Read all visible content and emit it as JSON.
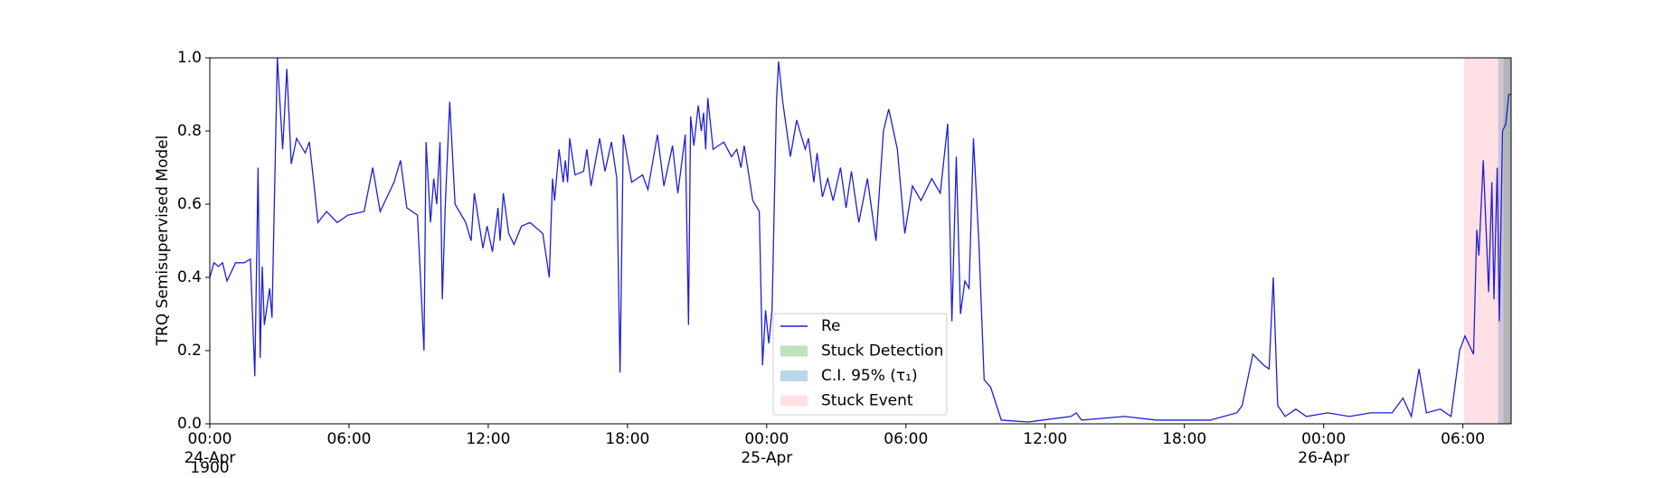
{
  "chart_data": {
    "type": "line",
    "y_label": "TRQ Semisupervised Model",
    "x_offset_label": "1900",
    "xlim": [
      0,
      56.08
    ],
    "ylim": [
      0,
      1
    ],
    "xticks": [
      {
        "value": 0,
        "label": "00:00\n24-Apr"
      },
      {
        "value": 6,
        "label": "06:00"
      },
      {
        "value": 12,
        "label": "12:00"
      },
      {
        "value": 18,
        "label": "18:00"
      },
      {
        "value": 24,
        "label": "00:00\n25-Apr"
      },
      {
        "value": 30,
        "label": "06:00"
      },
      {
        "value": 36,
        "label": "12:00"
      },
      {
        "value": 42,
        "label": "18:00"
      },
      {
        "value": 48,
        "label": "00:00\n26-Apr"
      },
      {
        "value": 54,
        "label": "06:00"
      }
    ],
    "yticks": [
      {
        "value": 0,
        "label": "0.0"
      },
      {
        "value": 0.2,
        "label": "0.2"
      },
      {
        "value": 0.4,
        "label": "0.4"
      },
      {
        "value": 0.6,
        "label": "0.6"
      },
      {
        "value": 0.8,
        "label": "0.8"
      },
      {
        "value": 1,
        "label": "1.0"
      }
    ],
    "series": [
      {
        "name": "Re",
        "color": "#1f1fd6",
        "x": [
          0,
          0.18,
          0.37,
          0.55,
          0.74,
          1.11,
          1.48,
          1.75,
          1.94,
          2.08,
          2.17,
          2.26,
          2.35,
          2.58,
          2.68,
          2.91,
          3.14,
          3.32,
          3.51,
          3.74,
          4.11,
          4.29,
          4.48,
          4.66,
          5.03,
          5.49,
          5.95,
          6.65,
          7.02,
          7.34,
          7.94,
          8.22,
          8.49,
          8.95,
          9.23,
          9.32,
          9.51,
          9.65,
          9.78,
          9.92,
          10.02,
          10.15,
          10.34,
          10.57,
          11.03,
          11.26,
          11.4,
          11.77,
          11.95,
          12.18,
          12.42,
          12.51,
          12.65,
          12.88,
          13.11,
          13.43,
          13.8,
          14.35,
          14.63,
          14.77,
          14.86,
          15.05,
          15.23,
          15.32,
          15.42,
          15.51,
          15.74,
          16.11,
          16.25,
          16.43,
          16.8,
          17.03,
          17.31,
          17.54,
          17.68,
          17.82,
          18.18,
          18.65,
          18.88,
          19.29,
          19.57,
          19.94,
          20.17,
          20.49,
          20.63,
          20.72,
          20.86,
          21.05,
          21.18,
          21.28,
          21.37,
          21.46,
          21.69,
          22.15,
          22.48,
          22.71,
          22.89,
          23.03,
          23.4,
          23.68,
          23.82,
          23.95,
          24.09,
          24.23,
          24.42,
          24.51,
          24.69,
          25.02,
          25.29,
          25.66,
          25.8,
          26.03,
          26.17,
          26.4,
          26.63,
          26.86,
          27.18,
          27.42,
          27.65,
          27.97,
          28.34,
          28.71,
          29.03,
          29.26,
          29.63,
          29.95,
          30.28,
          30.65,
          31.11,
          31.48,
          31.8,
          31.98,
          32.17,
          32.35,
          32.54,
          32.72,
          32.91,
          33.14,
          33.37,
          33.65,
          34.11,
          35.26,
          37.11,
          37.34,
          37.57,
          39.42,
          40.8,
          43.11,
          44.26,
          44.49,
          44.95,
          45.42,
          45.65,
          45.83,
          46.02,
          46.34,
          46.8,
          47.26,
          48.18,
          49.11,
          50.03,
          50.95,
          51.42,
          51.78,
          52.11,
          52.43,
          53.03,
          53.49,
          53.86,
          54.09,
          54.46,
          54.6,
          54.69,
          54.88,
          55.11,
          55.25,
          55.34,
          55.48,
          55.57,
          55.71,
          55.85,
          55.98,
          56.08
        ],
        "values": [
          0.4,
          0.44,
          0.43,
          0.44,
          0.39,
          0.44,
          0.44,
          0.45,
          0.13,
          0.7,
          0.18,
          0.43,
          0.27,
          0.37,
          0.29,
          1.0,
          0.75,
          0.97,
          0.71,
          0.78,
          0.74,
          0.77,
          0.66,
          0.55,
          0.58,
          0.55,
          0.57,
          0.58,
          0.7,
          0.58,
          0.66,
          0.72,
          0.59,
          0.57,
          0.2,
          0.77,
          0.55,
          0.67,
          0.6,
          0.77,
          0.34,
          0.6,
          0.88,
          0.6,
          0.55,
          0.5,
          0.63,
          0.48,
          0.54,
          0.47,
          0.59,
          0.5,
          0.63,
          0.52,
          0.49,
          0.54,
          0.55,
          0.52,
          0.4,
          0.67,
          0.61,
          0.75,
          0.66,
          0.72,
          0.66,
          0.78,
          0.68,
          0.69,
          0.75,
          0.65,
          0.78,
          0.69,
          0.77,
          0.67,
          0.14,
          0.79,
          0.66,
          0.68,
          0.64,
          0.79,
          0.65,
          0.76,
          0.63,
          0.79,
          0.27,
          0.84,
          0.76,
          0.87,
          0.8,
          0.85,
          0.75,
          0.89,
          0.75,
          0.77,
          0.73,
          0.75,
          0.7,
          0.76,
          0.61,
          0.58,
          0.16,
          0.31,
          0.22,
          0.31,
          0.88,
          0.99,
          0.88,
          0.73,
          0.83,
          0.75,
          0.78,
          0.66,
          0.74,
          0.62,
          0.67,
          0.61,
          0.7,
          0.59,
          0.69,
          0.55,
          0.67,
          0.5,
          0.8,
          0.86,
          0.75,
          0.52,
          0.65,
          0.61,
          0.67,
          0.63,
          0.82,
          0.28,
          0.73,
          0.3,
          0.39,
          0.37,
          0.78,
          0.5,
          0.12,
          0.1,
          0.01,
          0.005,
          0.02,
          0.03,
          0.01,
          0.02,
          0.01,
          0.01,
          0.03,
          0.05,
          0.19,
          0.16,
          0.15,
          0.4,
          0.05,
          0.02,
          0.04,
          0.02,
          0.03,
          0.02,
          0.03,
          0.03,
          0.07,
          0.02,
          0.15,
          0.03,
          0.04,
          0.02,
          0.2,
          0.24,
          0.19,
          0.53,
          0.46,
          0.72,
          0.36,
          0.66,
          0.34,
          0.7,
          0.28,
          0.8,
          0.82,
          0.9,
          0.9
        ]
      }
    ],
    "spans": [
      {
        "name": "Stuck Detection",
        "color": "#2ca02c",
        "x0": 55.75,
        "x1": 56.08
      },
      {
        "name": "C.I. 95% (τ₁)",
        "color": "#1f77b4",
        "x0": 55.52,
        "x1": 56.08
      },
      {
        "name": "Stuck Event",
        "color": "#ff9aa8",
        "x0": 54.05,
        "x1": 56.08
      }
    ]
  }
}
